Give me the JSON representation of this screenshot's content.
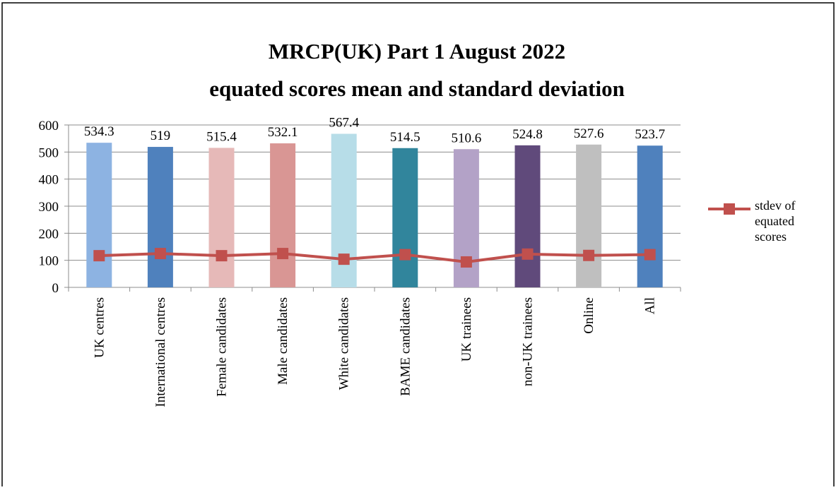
{
  "chart_data": {
    "type": "bar",
    "title": [
      "MRCP(UK) Part 1 August 2022",
      "equated scores mean and standard deviation"
    ],
    "categories": [
      "UK centres",
      "International centres",
      "Female candidates",
      "Male candidates",
      "White candidates",
      "BAME candidates",
      "UK trainees",
      "non-UK trainees",
      "Online",
      "All"
    ],
    "series": [
      {
        "type": "bar",
        "colors": [
          "#8db3e2",
          "#4f81bd",
          "#e6b9b8",
          "#d99694",
          "#b7dde8",
          "#31859c",
          "#b3a2c7",
          "#604a7b",
          "#bfbfbf",
          "#4f81bd"
        ],
        "values": [
          534.3,
          519,
          515.4,
          532.1,
          567.4,
          514.5,
          510.6,
          524.8,
          527.6,
          523.7
        ]
      },
      {
        "type": "line",
        "name": "stdev of equated scores",
        "color": "#c0504d",
        "values": [
          117,
          125,
          117,
          125,
          104,
          121,
          94,
          123,
          118,
          121
        ]
      }
    ],
    "ylim": [
      0,
      600
    ],
    "yticks": [
      0,
      100,
      200,
      300,
      400,
      500,
      600
    ],
    "grid": true,
    "legend": "right"
  }
}
